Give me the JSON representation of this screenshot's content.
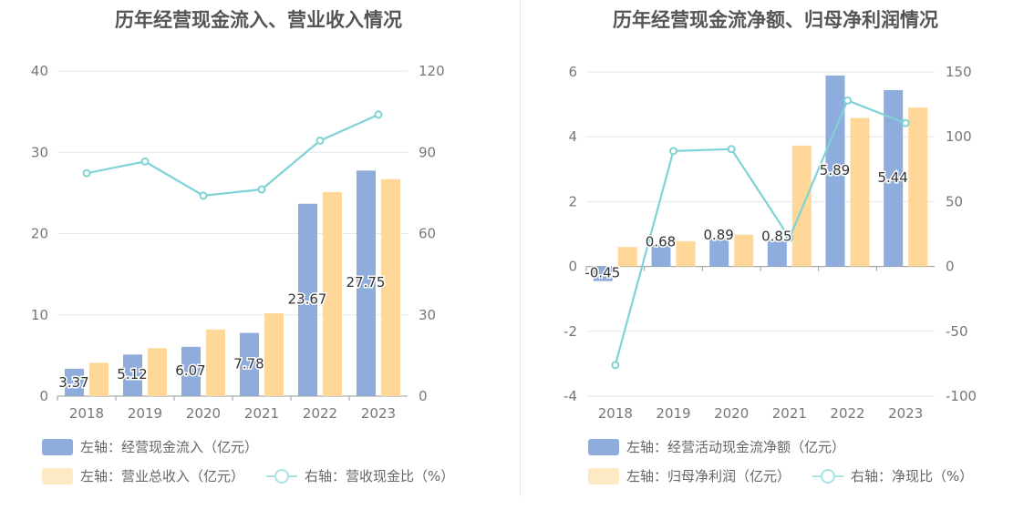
{
  "colors": {
    "bar_a": "#8eacdc",
    "bar_b": "#ffd899",
    "line": "#7fd3d6",
    "legend_b": "#fde9c4",
    "legend_line": "#a8e3e6",
    "grid": "#e3e6ef",
    "axis_text": "#777777"
  },
  "chart_data": [
    {
      "type": "bar",
      "title": "历年经营现金流入、营业收入情况",
      "categories": [
        "2018",
        "2019",
        "2020",
        "2021",
        "2022",
        "2023"
      ],
      "ylim_left": [
        0,
        40
      ],
      "ylim_right": [
        0,
        120
      ],
      "yticks_left": [
        "0",
        "10",
        "20",
        "30",
        "40"
      ],
      "yticks_right": [
        "0",
        "30",
        "60",
        "90",
        "120"
      ],
      "grid": true,
      "legend_position": "bottom",
      "series": [
        {
          "name": "左轴：经营现金流入（亿元）",
          "axis": "left",
          "type": "bar",
          "values": [
            3.37,
            5.12,
            6.07,
            7.78,
            23.67,
            27.75
          ],
          "labels": [
            "3.37",
            "5.12",
            "6.07",
            "7.78",
            "23.67",
            "27.75"
          ]
        },
        {
          "name": "左轴：营业总收入（亿元）",
          "axis": "left",
          "type": "bar",
          "values": [
            4.1,
            5.9,
            8.2,
            10.2,
            25.1,
            26.7
          ]
        },
        {
          "name": "右轴：营收现金比（%）",
          "axis": "right",
          "type": "line",
          "values": [
            82.3,
            86.6,
            74.0,
            76.3,
            94.3,
            103.9
          ]
        }
      ]
    },
    {
      "type": "bar",
      "title": "历年经营现金流净额、归母净利润情况",
      "categories": [
        "2018",
        "2019",
        "2020",
        "2021",
        "2022",
        "2023"
      ],
      "ylim_left": [
        -4,
        6
      ],
      "ylim_right": [
        -100,
        150
      ],
      "yticks_left": [
        "-4",
        "-2",
        "0",
        "2",
        "4",
        "6"
      ],
      "yticks_right": [
        "-100",
        "-50",
        "0",
        "50",
        "100",
        "150"
      ],
      "grid": true,
      "legend_position": "bottom",
      "series": [
        {
          "name": "左轴：经营活动现金流净额（亿元）",
          "axis": "left",
          "type": "bar",
          "values": [
            -0.45,
            0.68,
            0.89,
            0.85,
            5.89,
            5.44
          ],
          "labels": [
            "-0.45",
            "0.68",
            "0.89",
            "0.85",
            "5.89",
            "5.44"
          ]
        },
        {
          "name": "左轴：归母净利润（亿元）",
          "axis": "left",
          "type": "bar",
          "values": [
            0.6,
            0.78,
            0.98,
            3.73,
            4.58,
            4.9
          ]
        },
        {
          "name": "右轴：净现比（%）",
          "axis": "right",
          "type": "line",
          "values": [
            -76.0,
            89.0,
            90.5,
            22.0,
            128.0,
            110.5
          ]
        }
      ]
    }
  ]
}
